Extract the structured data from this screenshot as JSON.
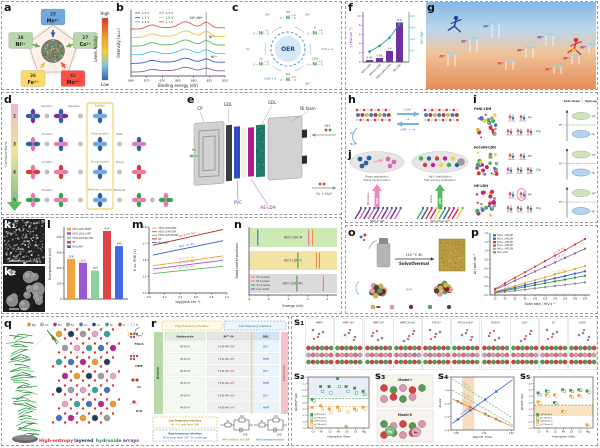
{
  "panels": {
    "a": {
      "letter": "a",
      "nodes": [
        {
          "num": "25",
          "ion": "Mn²⁺",
          "bg": "#6fa8dc",
          "arrow": "#2e5fa3"
        },
        {
          "num": "27",
          "ion": "Co²⁺",
          "bg": "#b6d7a8",
          "arrow": "#6aa84f"
        },
        {
          "num": "42",
          "ion": "Mo⁶⁺",
          "bg": "#ff4f42",
          "arrow": "#ff4f42"
        },
        {
          "num": "26",
          "ion": "Fe³⁺",
          "bg": "#ffd966",
          "arrow": "#f1c232"
        },
        {
          "num": "28",
          "ion": "Ni²⁺",
          "bg": "#b6d7a8",
          "arrow": "#6aa84f"
        }
      ],
      "colorbar": {
        "high": "High",
        "low": "Low",
        "title": "Lewis Acidity"
      }
    },
    "b": {
      "letter": "b"
    },
    "c": {
      "letter": "c",
      "center": "OER",
      "metal": "Ni",
      "oxo": "O",
      "species": [
        {
          "state": "+3",
          "lig": "OH"
        },
        {
          "state": "+4",
          "lig": "O"
        },
        {
          "state": "+3",
          "lig": "OOH"
        },
        {
          "state": "+3",
          "lig": "OO"
        },
        {
          "state": "+3",
          "lig": "O₂"
        },
        {
          "state": "+2",
          "lig": ""
        }
      ],
      "flow": [
        "OH⁻",
        "H₂O + e⁻",
        "OH⁻",
        "H₂O + e⁻",
        "O₂",
        "OH⁻"
      ]
    },
    "d": {
      "letter": "d",
      "axis": "Compositions",
      "nums": [
        "2",
        "3",
        "4",
        "5"
      ],
      "box_labels": [
        "Full filled",
        "Weak donation",
        "Strong donation",
        "Moderate occupancy"
      ],
      "row_labels": [
        [
          "Repulsion",
          "Repulsion"
        ],
        [
          "Donation",
          "Weak"
        ],
        [
          "Donation",
          "Strong"
        ],
        [
          "Donation",
          "Moderate"
        ]
      ],
      "orb_colors": [
        [
          "#7030a0",
          "#2e5fa3"
        ],
        [
          "#e878b0",
          "#2e5fa3"
        ],
        [
          "#e878b0",
          "#d43a3a"
        ],
        [
          "#e878b0",
          "#3c9e50"
        ]
      ]
    },
    "e": {
      "letter": "e",
      "labels": {
        "cp": "CP",
        "gdl1": "GDL",
        "gdl2": "GDL",
        "nifoam": "Ni foam",
        "pvc": "PVC",
        "heldh": "HE-LDH",
        "h2": "H₂",
        "oh": "OH⁻",
        "o2": "O₂ + H₂O"
      }
    },
    "f": {
      "letter": "f"
    },
    "g": {
      "letter": "g",
      "hurdle_labels": [
        "Ni²⁺",
        "Ni³⁺",
        "Ni⁴⁺"
      ]
    },
    "h": {
      "letter": "h",
      "top_in": "+OH⁻",
      "top_out": "−e⁻",
      "bot_in": "+OH⁻ / −e⁻",
      "o2": "O₂",
      "h2o": "H₂O"
    },
    "i": {
      "letter": "i",
      "headers": [
        "Spin-down",
        "Spin-up"
      ],
      "rows": [
        {
          "name": "FeNi-LDH"
        },
        {
          "name": "FeCoNi-LDH"
        },
        {
          "name": "HE-LDH"
        }
      ],
      "orb": {
        "eg": "eg",
        "t2g": "t2g",
        "egstar": "eg*",
        "ef": "EF"
      }
    },
    "j": {
      "letter": "j",
      "left_notes": [
        "Phase segregation",
        "Phase transformation"
      ],
      "right_notes": [
        "Mg–O stabilization",
        "High-entropy stabilization"
      ],
      "left_arrow": {
        "label": "OER",
        "tag": "Nonstable",
        "color": "#ee86c0"
      },
      "right_arrow": {
        "label": "OER",
        "tag": "Stable",
        "color": "#57b85c"
      },
      "bottom_labels": [
        "FeNi(Co) LDH",
        "High-entropy LDH"
      ]
    },
    "k": {
      "letters": [
        "k₁",
        "k₂"
      ],
      "scalebars": [
        "200 nm",
        "1 μm"
      ]
    },
    "l": {
      "letter": "l"
    },
    "m": {
      "letter": "m"
    },
    "n": {
      "letter": "n"
    },
    "o": {
      "letter": "o",
      "temp": "120 °C  4h",
      "method": "Solvothermal",
      "chevrons": "»»",
      "legend": [
        {
          "name": "Co",
          "color": "#d8b24a"
        },
        {
          "name": "Fe",
          "color": "#e89a9a"
        },
        {
          "name": "Ni",
          "color": "#8b1a1a"
        },
        {
          "name": "Mn",
          "color": "#56a056"
        },
        {
          "name": "Cr",
          "color": "#5a3a2a"
        }
      ]
    },
    "p": {
      "letter": "p"
    },
    "q": {
      "letter": "q",
      "legend": [
        {
          "name": "Mg",
          "color": "#f59a23"
        },
        {
          "name": "Cd",
          "color": "#f2a0c8"
        },
        {
          "name": "Mn",
          "color": "#c0218c"
        },
        {
          "name": "Fe",
          "color": "#9e9e9e"
        },
        {
          "name": "Co",
          "color": "#4472c4"
        },
        {
          "name": "Cu",
          "color": "#1f3864"
        },
        {
          "name": "Ni",
          "color": "#2fa4a4"
        },
        {
          "name": "O",
          "color": "#e03131"
        },
        {
          "name": "H",
          "color": "#ffffff"
        }
      ],
      "molecules": [
        "FDCA",
        "HMF",
        "O₂",
        "H₂O"
      ],
      "caption": [
        {
          "text": "High-entropy ",
          "color": "#e03131"
        },
        {
          "text": "layered ",
          "color": "#1f3864"
        },
        {
          "text": "hydroxide ",
          "color": "#2e8b57"
        },
        {
          "text": "arrays",
          "color": "#7030a0"
        }
      ]
    },
    "r": {
      "letter": "r",
      "hf_header": "High frequency interface",
      "lf_header": "Low frequency interface",
      "col_headers": [
        "Hydroxide",
        "M³⁺-O-",
        "DBL"
      ],
      "anode": "Anode",
      "electrolyte": "Electrolyte",
      "row_hydroxide": "M-O-H",
      "row_oxide_prefix": "H-O-M-",
      "row_oxide_suffix": "OH⁻",
      "dbl_species": [
        "OH⁻",
        "HMF"
      ],
      "note_lf_line1": "Low frequency interface",
      "note_lf_line2": "(M³⁺-O-) oxide layer | DBL",
      "note_hf_line1": "High frequency interface",
      "note_hf_line2": "M-OH (inner layer) | (M³⁺-O-) oxide layer",
      "rs": "Rs",
      "rct": "Rct",
      "cpe1": "CPE₁",
      "cpe2": "CPE₂",
      "cap1": "HMF oxidation and OER",
      "cap2": "Electrocatalyst evolution"
    },
    "s1": {
      "letter": "s₁",
      "labels": [
        "HMF*",
        "HMF-H₁*",
        "HMFCA*",
        "HMFCA-H₂*",
        "FFCA*",
        "FFCA+OH*",
        "FDCA*",
        "OH*",
        "O*",
        "OOH*"
      ]
    },
    "s2": {
      "letter": "s₂"
    },
    "s3": {
      "letter": "s₃",
      "models": [
        "Model-I",
        "Model-II"
      ],
      "atoms": [
        "Mg",
        "Mn"
      ]
    },
    "s4": {
      "letter": "s₄"
    },
    "s5": {
      "letter": "s₅"
    }
  },
  "chart_data": [
    {
      "id": "b",
      "type": "line",
      "xlabel": "Binding energy (eV)",
      "ylabel": "Intensity (a.u.)",
      "y_arbitrary": true,
      "x_range": [
        880,
        850
      ],
      "xticks": [
        "880",
        "875",
        "870",
        "865",
        "860",
        "855",
        "850"
      ],
      "annotations": [
        "Ni²⁺/Ni³⁺",
        "Ni³⁺",
        "Ni²⁺"
      ],
      "ref_line_eV": 855.6,
      "series": [
        {
          "name": "1.2 V",
          "color": "#8e5ea8"
        },
        {
          "name": "1.3 V",
          "color": "#3c5bd0"
        },
        {
          "name": "1.4 V",
          "color": "#3fc8e0"
        },
        {
          "name": "1.5 V",
          "color": "#57b85c"
        },
        {
          "name": "1.6 V",
          "color": "#f2c43d"
        },
        {
          "name": "1.7 V",
          "color": "#e05a4e"
        }
      ]
    },
    {
      "id": "f",
      "type": "bar+line",
      "categories": [
        "NiFe-LDH",
        "NiFeCo-LDH",
        "NiFeCoMn-LDH",
        "HE-LDH"
      ],
      "bar_values": [
        0.42,
        0.86,
        2.4,
        8.6
      ],
      "bar_labels": [
        "0.42",
        "0.86",
        "2.4",
        "8.6"
      ],
      "bar_color": "#7030a0",
      "line_values": [
        0.18,
        0.28,
        0.42,
        0.66
      ],
      "line_color": "#17a2a2",
      "ylabel_left": "j (mA cm⁻²)",
      "ylabel_right": "Ni³⁺/Ni²⁺",
      "ylim_left": [
        0,
        10
      ],
      "ylim_right": [
        0,
        0.8
      ]
    },
    {
      "id": "l",
      "type": "bar",
      "ylabel": "Overpotential (mV)",
      "ylim": [
        0,
        450
      ],
      "yticks": [
        0,
        100,
        200,
        300,
        400
      ],
      "categories": [
        "HEO-LDH-M/NF",
        "HEO-LDH-C/NF",
        "HEO-LDH-MC/NF",
        "NF",
        "RuO₂/NF"
      ],
      "values": [
        258,
        233,
        183,
        437,
        340
      ],
      "labels": [
        "258",
        "233",
        "183",
        "437",
        "340"
      ],
      "colors": [
        "#f2a23c",
        "#9b59d0",
        "#8fd19e",
        "#e04343",
        "#4169e1"
      ]
    },
    {
      "id": "m",
      "type": "line",
      "xlabel": "log(j/mA cm⁻²)",
      "ylabel": "E vs. RHE (V)",
      "xlim": [
        0,
        1.0
      ],
      "ylim": [
        1.4,
        1.8
      ],
      "xticks": [
        0.0,
        0.2,
        0.4,
        0.6,
        0.8,
        1.0
      ],
      "yticks": [
        1.4,
        1.5,
        1.6,
        1.7,
        1.8
      ],
      "series": [
        {
          "name": "HEO-LDH-M/NF",
          "color": "#f2a23c",
          "slope_label": "66.5 mV dec⁻¹",
          "start": [
            0.05,
            1.565
          ],
          "end": [
            0.95,
            1.625
          ]
        },
        {
          "name": "HEO-LDH-C/NF",
          "color": "#9b59d0",
          "slope_label": "58.9 mV dec⁻¹",
          "start": [
            0.05,
            1.545
          ],
          "end": [
            0.95,
            1.598
          ]
        },
        {
          "name": "HEO-LDH-MC/NF",
          "color": "#57b85c",
          "slope_label": "49.2 mV dec⁻¹",
          "start": [
            0.05,
            1.518
          ],
          "end": [
            0.95,
            1.562
          ]
        },
        {
          "name": "NF",
          "color": "#b02a2a",
          "slope_label": "105.9 mV dec⁻¹",
          "start": [
            0.05,
            1.69
          ],
          "end": [
            0.95,
            1.785
          ]
        },
        {
          "name": "RuO₂/NF",
          "color": "#3c5bd0",
          "slope_label": "96.2 mV dec⁻¹",
          "start": [
            0.05,
            1.63
          ],
          "end": [
            0.95,
            1.717
          ]
        }
      ]
    },
    {
      "id": "n",
      "type": "band-centers",
      "xlabel": "Energy (eV)",
      "ylabel": "Band center position",
      "xlim": [
        -8,
        1
      ],
      "xticks": [
        -8,
        -6,
        -4,
        -2,
        0
      ],
      "bands": [
        {
          "name": "HEO-LDH-M",
          "bg": "#cdeab5",
          "markers": [
            {
              "legend": "O p-center",
              "e": -7.1
            },
            {
              "legend": "Fe d-center",
              "e": -1.9
            },
            {
              "legend": "Ni d-center",
              "e": -1.5
            }
          ]
        },
        {
          "name": "HEO-LDH-C",
          "bg": "#f3e3a2",
          "markers": [
            {
              "legend": "Co d-center",
              "e": -3.0
            },
            {
              "legend": "Ni d-center",
              "e": -1.1
            },
            {
              "legend": "Fe d-center",
              "e": -0.8
            }
          ]
        },
        {
          "name": "HEO-LDH-MC",
          "bg": "#dcdcdc",
          "markers": [
            {
              "legend": "Co d-center",
              "e": -3.1
            },
            {
              "legend": "Fe d-center",
              "e": -0.4
            }
          ]
        }
      ],
      "legend": [
        {
          "name": "Fe d-center",
          "color": "#f06ba8"
        },
        {
          "name": "Ni d-center",
          "color": "#f08c3c"
        },
        {
          "name": "Co d-center",
          "color": "#3c9e50"
        },
        {
          "name": "O p-center",
          "color": "#4169e1"
        }
      ]
    },
    {
      "id": "p",
      "type": "scatter+line",
      "xlabel": "Scan rate / mV s⁻¹",
      "ylabel": "Δj / mA cm⁻²",
      "xlim": [
        10,
        210
      ],
      "ylim": [
        0,
        1.4
      ],
      "xticks": [
        20,
        40,
        60,
        80,
        100,
        120,
        140,
        160,
        180,
        200
      ],
      "yticks": [
        0.0,
        0.2,
        0.4,
        0.6,
        0.8,
        1.0,
        1.2,
        1.4
      ],
      "series": [
        {
          "name": "FeCo₀.₅-HELDH",
          "color": "#2e8b57",
          "cdl": "2.1 mF cm⁻²",
          "y200": 0.42
        },
        {
          "name": "FeCo₁.₀-HELDH",
          "color": "#3c5bd0",
          "cdl": "2.4 mF cm⁻²",
          "y200": 0.52
        },
        {
          "name": "FeCo₁.₅-HELDH",
          "color": "#d43a3a",
          "cdl": "6.2 mF cm⁻²",
          "y200": 1.25
        },
        {
          "name": "FeCo₂.₀-HELDH",
          "color": "#8e5ea8",
          "cdl": "5.1 mF cm⁻²",
          "y200": 1.03
        },
        {
          "name": "FeCo₂.₅-HELDH",
          "color": "#e0b030",
          "cdl": "3.1 mF cm⁻²",
          "y200": 0.64
        },
        {
          "name": "FeCo-LDH",
          "color": "#8a8a8a",
          "cdl": "1.33 mF cm⁻²",
          "y200": 0.27
        }
      ]
    },
    {
      "id": "s2",
      "type": "scatter",
      "ylabel": "ΔG(HMF*)/eV",
      "xlabel": "Adsorption Sites",
      "sites": [
        "Co",
        "Ni",
        "Cu",
        "Mn",
        "Zn",
        "Cd",
        "Mg"
      ],
      "ylim": [
        -1.6,
        0.0
      ],
      "yticks": [
        0.0,
        -0.2,
        -0.4,
        -0.6,
        -0.8,
        -1.0,
        -1.2,
        -1.4,
        -1.6
      ],
      "shade": {
        "from": 0.0,
        "to": -0.62,
        "color": "#e9edf9"
      },
      "dashed_lines": [
        {
          "y": -0.68,
          "color": "#3c9e50"
        },
        {
          "y": -0.93,
          "color": "#f0a030"
        }
      ],
      "series": [
        {
          "name": "@M Model-I",
          "color": "#3c9e50",
          "fill": true,
          "values": [
            -0.7,
            -0.3,
            -0.3,
            -0.05,
            -0.3,
            -0.35,
            -0.45
          ]
        },
        {
          "name": "@O Model-I",
          "color": "#3c9e50",
          "fill": false,
          "values": [
            -0.75,
            -0.45,
            -0.5,
            -0.3,
            -0.45,
            -0.5,
            -0.55
          ]
        },
        {
          "name": "@M Model-II",
          "color": "#f0a030",
          "fill": true,
          "values": [
            -0.95,
            -0.9,
            -1.0,
            -0.95,
            -1.55,
            -1.0,
            -0.95
          ]
        },
        {
          "name": "@O Model-II",
          "color": "#f0a030",
          "fill": false,
          "values": [
            -1.6,
            -1.0,
            -1.1,
            -1.05,
            -1.1,
            -1.05,
            -1.0
          ]
        }
      ]
    },
    {
      "id": "s4",
      "type": "scaling-lines",
      "xlabel": "ΔG(OH⁻)*/eV",
      "ylabel": "ΔG/eV",
      "xlim": [
        0.3,
        2.6
      ],
      "ylim": [
        -2,
        2
      ],
      "xticks": [
        0.5,
        1.5,
        2.5
      ],
      "yticks": [
        -2.0,
        -1.0,
        0.0,
        1.0,
        2.0
      ],
      "shade": {
        "x1": 0.72,
        "x2": 1.15,
        "color": "#f8dcc0"
      },
      "lines": [
        {
          "label": "H₂O→OH*",
          "color": "#7ab661",
          "dash": true,
          "p1": [
            0.35,
            1.0
          ],
          "p2": [
            2.55,
            -1.6
          ]
        },
        {
          "label": "OH*→O*",
          "color": "#e08a3c",
          "dash": false,
          "p1": [
            0.35,
            0.35
          ],
          "p2": [
            2.55,
            -1.75
          ]
        },
        {
          "label": "O*→OOH*",
          "color": "#4169e1",
          "dash": false,
          "p1": [
            0.35,
            -1.5
          ],
          "p2": [
            2.55,
            1.8
          ]
        },
        {
          "label": "OOH*→O₂",
          "color": "#7ab661",
          "dash": true,
          "p1": [
            0.35,
            1.85
          ],
          "p2": [
            2.55,
            -1.1
          ]
        }
      ],
      "points": [
        {
          "label": "Mn",
          "x": 0.55
        },
        {
          "label": "Co",
          "x": 1.0
        },
        {
          "label": "Ni",
          "x": 1.55
        },
        {
          "label": "Cu",
          "x": 1.95
        }
      ]
    },
    {
      "id": "s5",
      "type": "scatter",
      "ylabel": "ΔG(OH*)/eV",
      "xlabel": "Adsorption Sites",
      "sites": [
        "Co",
        "Ni",
        "Cu",
        "Mn",
        "Zn",
        "Cd",
        "Mg"
      ],
      "ylim": [
        -1.0,
        3.0
      ],
      "yticks": [
        3.0,
        2.5,
        2.0,
        1.5,
        1.0,
        0.5,
        0.0,
        -0.5,
        -1.0
      ],
      "shade": {
        "from": 0.8,
        "to": 0.0,
        "color": "#fbe3c0"
      },
      "dashed_lines": [
        {
          "y": 0.8,
          "color": "#3c9e50"
        },
        {
          "y": 0.0,
          "color": "#f0a030"
        }
      ],
      "series": [
        {
          "name": "@M Model-I",
          "color": "#3c9e50",
          "fill": true,
          "values": [
            1.75,
            1.9,
            1.0,
            2.0,
            1.95,
            2.0,
            1.9
          ]
        },
        {
          "name": "@O Model-I",
          "color": "#3c9e50",
          "fill": false,
          "values": [
            1.6,
            1.85,
            0.95,
            1.9,
            1.85,
            1.95,
            1.8
          ]
        },
        {
          "name": "@M Model-II",
          "color": "#f0a030",
          "fill": true,
          "values": [
            1.05,
            1.6,
            1.6,
            0.3,
            1.5,
            1.55,
            -0.75
          ]
        },
        {
          "name": "@O Model-II",
          "color": "#f0a030",
          "fill": false,
          "values": [
            0.95,
            1.5,
            1.5,
            0.25,
            1.4,
            1.45,
            -0.9
          ]
        }
      ]
    }
  ]
}
